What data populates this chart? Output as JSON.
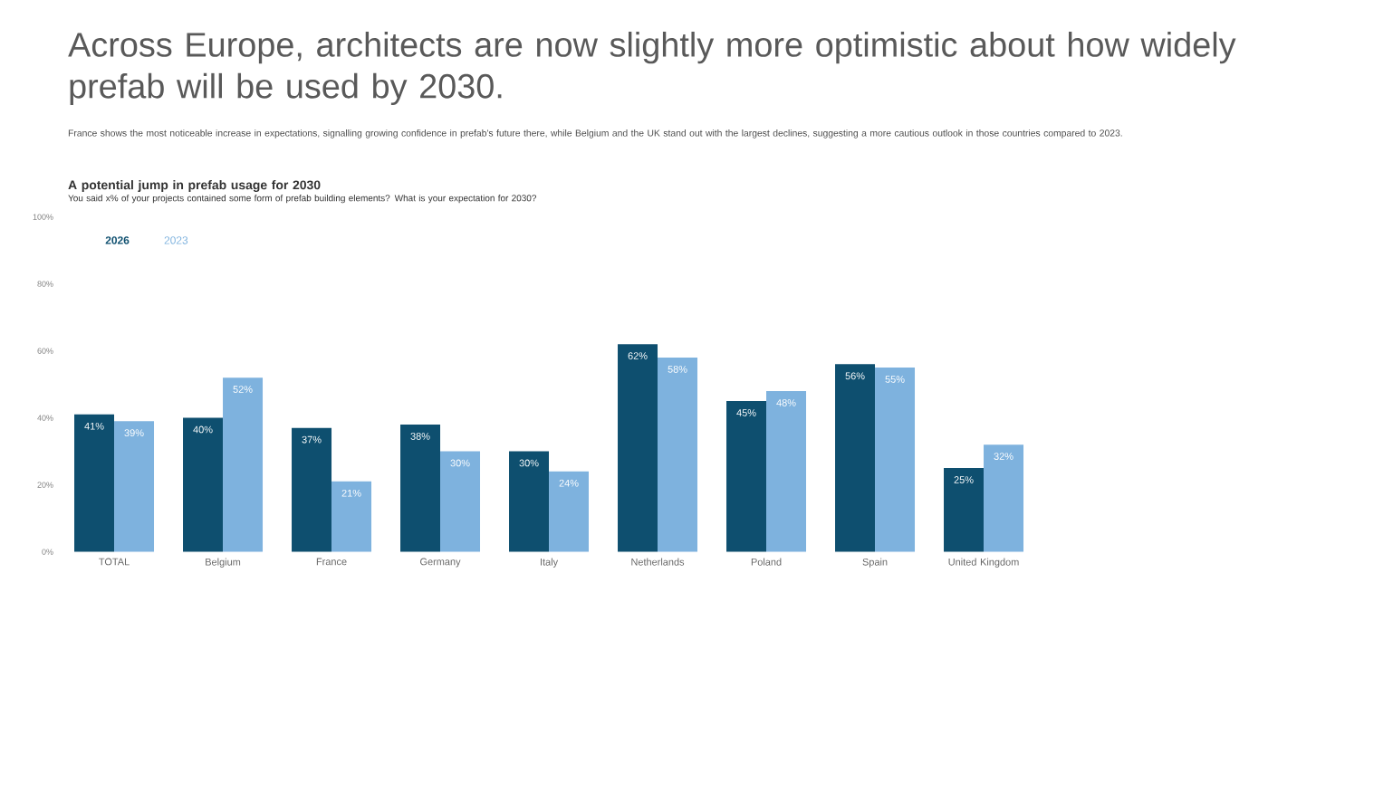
{
  "chart_data": {
    "type": "bar",
    "title": "Across Europe, architects are now slightly more optimistic about how widely prefab will be used by 2030.",
    "subtitle": "France shows the most noticeable increase in expectations, signalling growing confidence in prefab's future there, while Belgium and the UK stand out with the largest declines, suggesting a more cautious outlook in those countries compared to 2023.",
    "annotations": [
      "**A potential jump in prefab usage for 2030**",
      "You said x% of your projects contained some form of prefab building elements? What is your expectation for 2030?"
    ],
    "categories": [
      "TOTAL",
      "Belgium",
      "France",
      "Germany",
      "Italy",
      "Netherlands",
      "Poland",
      "Spain",
      "United Kingdom"
    ],
    "series": [
      {
        "name": "2026",
        "color": "#0e4f6f",
        "values": [
          41,
          40,
          37,
          38,
          30,
          62,
          45,
          56,
          25
        ],
        "value_labels": [
          "41%",
          "40%",
          "37%",
          "38%",
          "30%",
          "62%",
          "45%",
          "56%",
          "25%"
        ]
      },
      {
        "name": "2023",
        "color": "#7eb2de",
        "values": [
          39,
          52,
          21,
          30,
          24,
          58,
          48,
          55,
          32
        ],
        "value_labels": [
          "39%",
          "52%",
          "21%",
          "30%",
          "24%",
          "58%",
          "48%",
          "55%",
          "32%"
        ]
      }
    ],
    "ylim": [
      0,
      100
    ],
    "yticks": [
      {
        "value": 0,
        "label": "0%"
      },
      {
        "value": 20,
        "label": "20%"
      },
      {
        "value": 40,
        "label": "40%"
      },
      {
        "value": 60,
        "label": "60%"
      },
      {
        "value": 80,
        "label": "80%"
      },
      {
        "value": 100,
        "label": "100%"
      }
    ],
    "legend": "top left",
    "grid": false
  }
}
